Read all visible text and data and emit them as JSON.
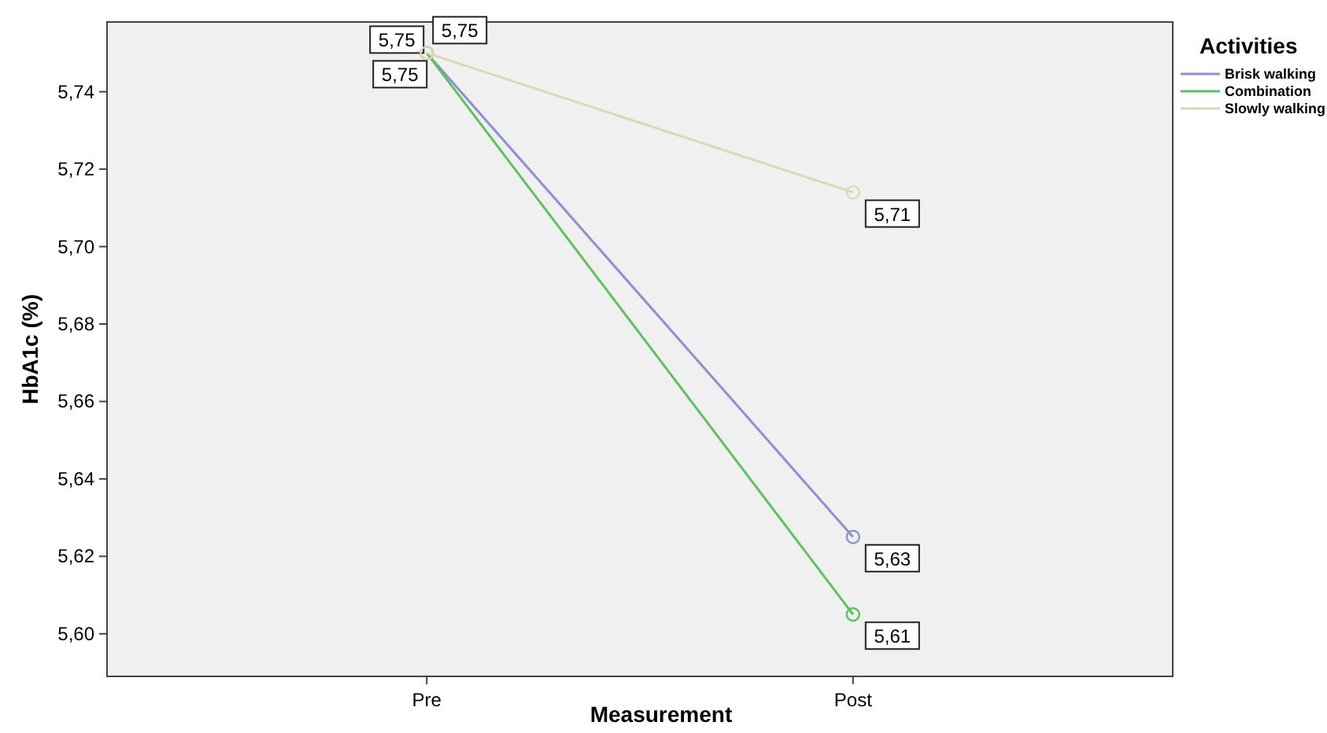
{
  "chart_data": {
    "type": "line",
    "xlabel": "Measurement",
    "ylabel": "HbA1c (%)",
    "legend_title": "Activities",
    "categories": [
      "Pre",
      "Post"
    ],
    "series": [
      {
        "name": "Brisk walking",
        "color": "#8b8fd6",
        "values": [
          5.75,
          5.625
        ],
        "value_labels": [
          "5,75",
          "5,63"
        ]
      },
      {
        "name": "Combination",
        "color": "#5cc35c",
        "values": [
          5.75,
          5.605
        ],
        "value_labels": [
          "5,75",
          "5,61"
        ]
      },
      {
        "name": "Slowly walking",
        "color": "#dcd9b0",
        "values": [
          5.75,
          5.714
        ],
        "value_labels": [
          "5,75",
          "5,71"
        ]
      }
    ],
    "ylim": [
      5.589,
      5.758
    ],
    "yticks": [
      {
        "value": 5.6,
        "label": "5,60"
      },
      {
        "value": 5.62,
        "label": "5,62"
      },
      {
        "value": 5.64,
        "label": "5,64"
      },
      {
        "value": 5.66,
        "label": "5,66"
      },
      {
        "value": 5.68,
        "label": "5,68"
      },
      {
        "value": 5.7,
        "label": "5,70"
      },
      {
        "value": 5.72,
        "label": "5,72"
      },
      {
        "value": 5.74,
        "label": "5,74"
      }
    ],
    "grid": false,
    "legend": "top right",
    "marker": "circle",
    "line_style": "solid"
  }
}
